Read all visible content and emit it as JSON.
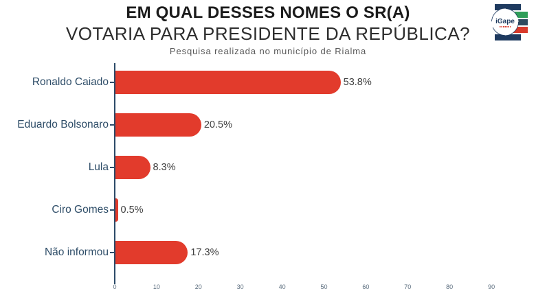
{
  "header": {
    "title_line1": "EM QUAL DESSES NOMES O SR(A)",
    "title_line2": "VOTARIA PARA PRESIDENTE DA REPÚBLICA?",
    "subtitle": "Pesquisa realizada no município de Rialma"
  },
  "logo": {
    "text": "iGape",
    "navy": "#1e3a5f",
    "green": "#2f9e58",
    "red": "#d93a2b"
  },
  "colors": {
    "bar": "#e23b2c",
    "axis": "#2b4a68",
    "category_label": "#2e4d68",
    "value_label": "#3e3e3e",
    "tick_label": "#5b6d7e"
  },
  "chart_data": {
    "type": "bar",
    "orientation": "horizontal",
    "title": "EM QUAL DESSES NOMES O SR(A) VOTARIA PARA PRESIDENTE DA REPÚBLICA?",
    "subtitle": "Pesquisa realizada no município de Rialma",
    "categories": [
      "Ronaldo Caiado",
      "Eduardo Bolsonaro",
      "Lula",
      "Ciro Gomes",
      "Não informou"
    ],
    "values": [
      53.8,
      20.5,
      8.3,
      0.5,
      17.3
    ],
    "value_labels": [
      "53.8%",
      "20.5%",
      "8.3%",
      "0.5%",
      "17.3%"
    ],
    "x_ticks": [
      0,
      10,
      20,
      30,
      40,
      50,
      60,
      70,
      80,
      90
    ],
    "xlim": [
      0,
      100
    ],
    "grid": false,
    "legend": false,
    "bar_color": "#e23b2c"
  }
}
